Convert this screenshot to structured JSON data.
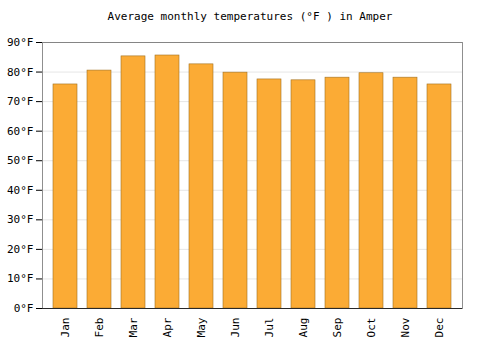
{
  "chart_data": {
    "type": "bar",
    "title": "Average monthly temperatures (°F ) in Amper",
    "categories": [
      "Jan",
      "Feb",
      "Mar",
      "Apr",
      "May",
      "Jun",
      "Jul",
      "Aug",
      "Sep",
      "Oct",
      "Nov",
      "Dec"
    ],
    "values": [
      75.8,
      80.5,
      85.3,
      85.6,
      82.6,
      79.8,
      77.5,
      77.2,
      78.1,
      79.6,
      78.1,
      75.8
    ],
    "color": "#fbab35",
    "ylim": [
      0,
      90
    ],
    "yticks": [
      {
        "value": 0,
        "label": "0°F"
      },
      {
        "value": 10,
        "label": "10°F"
      },
      {
        "value": 20,
        "label": "20°F"
      },
      {
        "value": 30,
        "label": "30°F"
      },
      {
        "value": 40,
        "label": "40°F"
      },
      {
        "value": 50,
        "label": "50°F"
      },
      {
        "value": 60,
        "label": "60°F"
      },
      {
        "value": 70,
        "label": "70°F"
      },
      {
        "value": 80,
        "label": "80°F"
      },
      {
        "value": 90,
        "label": "90°F"
      }
    ],
    "grid": true
  }
}
